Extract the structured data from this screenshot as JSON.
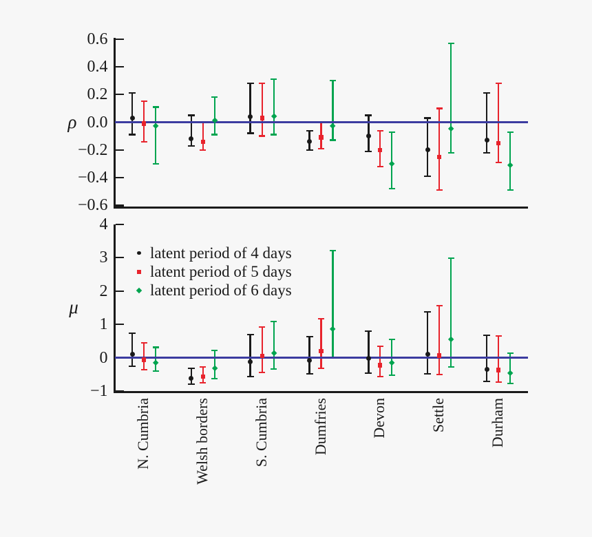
{
  "figure": {
    "background": "#f7f7f7",
    "axis_color": "#1a1a1a",
    "zero_line_color": "#3c3ca0"
  },
  "chart_data": [
    {
      "type": "errorbar",
      "panel": "top",
      "ylabel": "ρ",
      "yticks": [
        "0.6",
        "0.4",
        "0.2",
        "0.0",
        "−0.2",
        "−0.4",
        "−0.6"
      ],
      "ytick_values": [
        0.6,
        0.4,
        0.2,
        0.0,
        -0.2,
        -0.4,
        -0.6
      ],
      "ylim": [
        -0.61,
        0.61
      ],
      "zero_line": 0,
      "grid": false,
      "categories": [
        "N. Cumbria",
        "Welsh borders",
        "S. Cumbria",
        "Dumfries",
        "Devon",
        "Settle",
        "Durham"
      ],
      "series": [
        {
          "name": "latent period of 4 days",
          "color": "#1a1a1a",
          "marker": "circle",
          "y": [
            0.03,
            -0.12,
            0.04,
            -0.14,
            -0.1,
            -0.2,
            -0.13
          ],
          "lo": [
            -0.09,
            -0.17,
            -0.08,
            -0.2,
            -0.21,
            -0.39,
            -0.22
          ],
          "hi": [
            0.21,
            0.05,
            0.28,
            -0.06,
            0.05,
            0.03,
            0.21
          ]
        },
        {
          "name": "latent period of 5 days",
          "color": "#e8232c",
          "marker": "square",
          "y": [
            -0.01,
            -0.14,
            0.03,
            -0.11,
            -0.2,
            -0.25,
            -0.15
          ],
          "lo": [
            -0.14,
            -0.2,
            -0.1,
            -0.19,
            -0.32,
            -0.49,
            -0.29
          ],
          "hi": [
            0.15,
            0.0,
            0.28,
            0.0,
            -0.06,
            0.1,
            0.28
          ]
        },
        {
          "name": "latent period of 6 days",
          "color": "#00a44f",
          "marker": "diamond",
          "y": [
            -0.03,
            0.01,
            0.04,
            -0.03,
            -0.3,
            -0.05,
            -0.31
          ],
          "lo": [
            -0.3,
            -0.09,
            -0.09,
            -0.13,
            -0.48,
            -0.22,
            -0.49
          ],
          "hi": [
            0.11,
            0.18,
            0.31,
            0.3,
            -0.07,
            0.57,
            -0.07
          ]
        }
      ]
    },
    {
      "type": "errorbar",
      "panel": "bottom",
      "ylabel": "μ",
      "yticks": [
        "4",
        "3",
        "2",
        "1",
        "0",
        "−1"
      ],
      "ytick_values": [
        4,
        3,
        2,
        1,
        0,
        -1
      ],
      "ylim": [
        -1.03,
        4.05
      ],
      "zero_line": 0,
      "grid": false,
      "legend_position": "upper-left",
      "categories": [
        "N. Cumbria",
        "Welsh borders",
        "S. Cumbria",
        "Dumfries",
        "Devon",
        "Settle",
        "Durham"
      ],
      "series": [
        {
          "name": "latent period of 4 days",
          "color": "#1a1a1a",
          "marker": "circle",
          "y": [
            0.1,
            -0.61,
            -0.13,
            -0.08,
            -0.03,
            0.1,
            -0.35
          ],
          "lo": [
            -0.26,
            -0.8,
            -0.57,
            -0.48,
            -0.47,
            -0.48,
            -0.71
          ],
          "hi": [
            0.73,
            -0.31,
            0.69,
            0.63,
            0.8,
            1.38,
            0.67
          ]
        },
        {
          "name": "latent period of 5 days",
          "color": "#e8232c",
          "marker": "square",
          "y": [
            -0.06,
            -0.57,
            0.05,
            0.19,
            -0.23,
            0.06,
            -0.37
          ],
          "lo": [
            -0.37,
            -0.76,
            -0.44,
            -0.33,
            -0.57,
            -0.5,
            -0.73
          ],
          "hi": [
            0.45,
            -0.28,
            0.92,
            1.17,
            0.35,
            1.57,
            0.66
          ]
        },
        {
          "name": "latent period of 6 days",
          "color": "#00a44f",
          "marker": "diamond",
          "y": [
            -0.16,
            -0.33,
            0.13,
            0.86,
            -0.15,
            0.55,
            -0.47
          ],
          "lo": [
            -0.41,
            -0.63,
            -0.34,
            0.0,
            -0.53,
            -0.28,
            -0.77
          ],
          "hi": [
            0.31,
            0.22,
            1.09,
            3.22,
            0.55,
            2.98,
            0.13
          ]
        }
      ]
    }
  ]
}
